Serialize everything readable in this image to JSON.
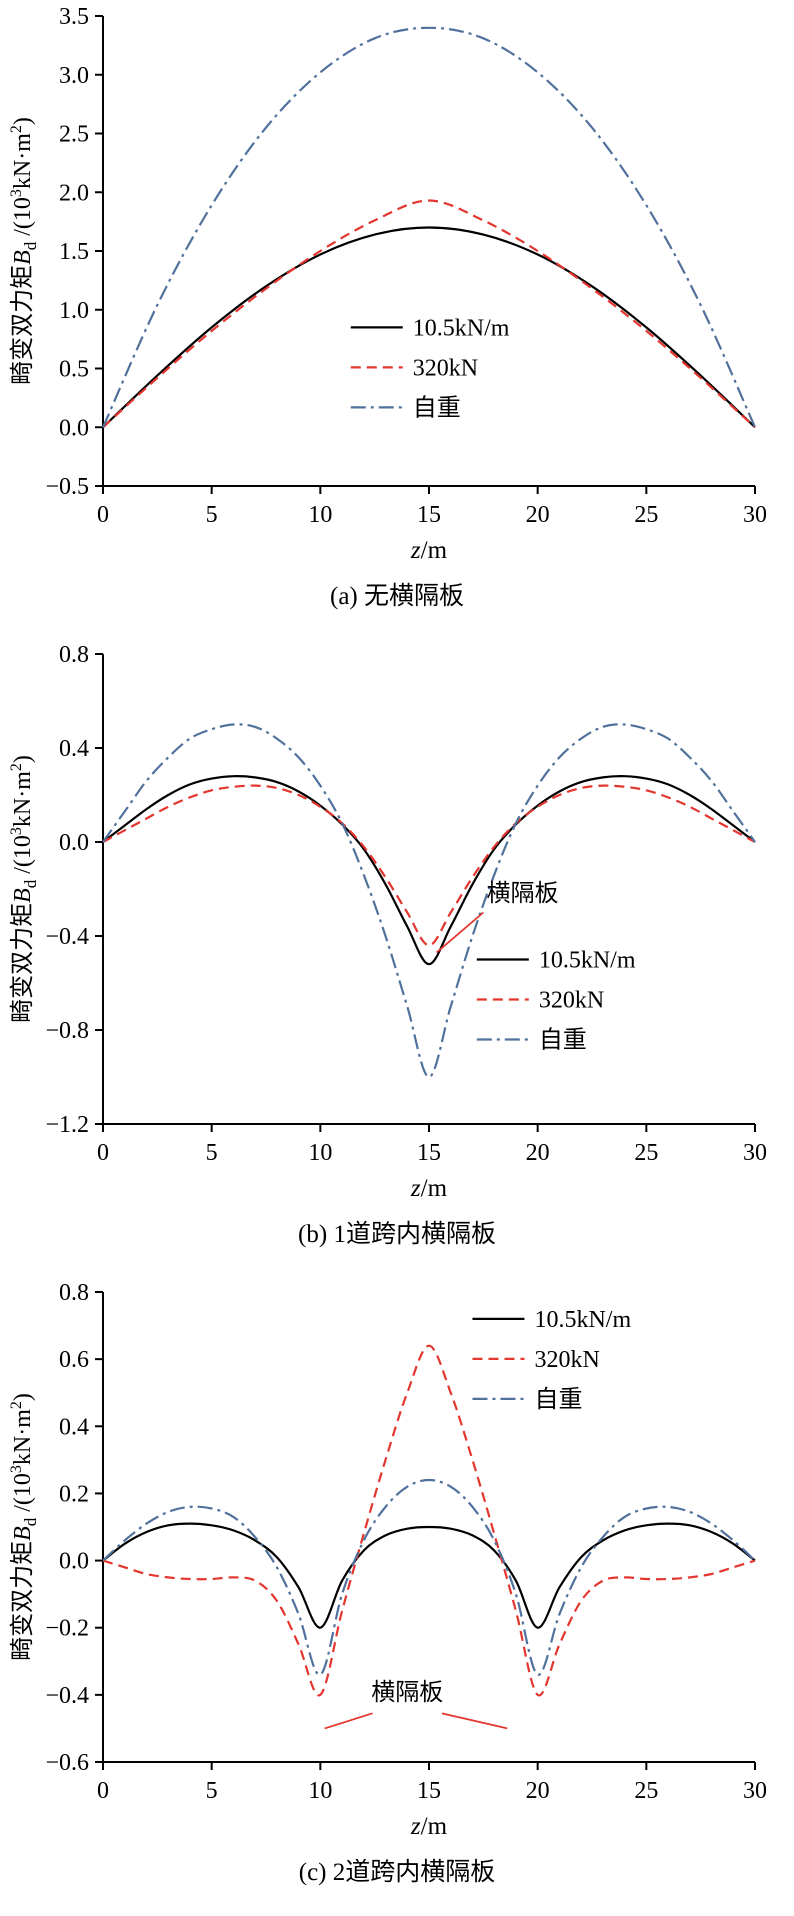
{
  "figure": {
    "background": "#ffffff"
  },
  "styles": {
    "axis_color": "#000000",
    "annotation_line_color": "#e3362f",
    "series_black": "#000000",
    "series_red": "#e3362f",
    "series_blue": "#50719c"
  },
  "xlabel_parts": {
    "symbol": "z",
    "unit": "/m"
  },
  "ylabel_parts": {
    "cn": "畸变双力矩",
    "symbol": "B",
    "symbol_sub": "d",
    "unit_open": " /(10",
    "exp1": "3",
    "unit_mid": "kN·m",
    "exp2": "2",
    "unit_close": ")"
  },
  "chart_data": [
    {
      "type": "line",
      "title": "(a) 无横隔板",
      "xlabel": "z/m",
      "ylabel": "畸变双力矩Bd /(10³kN·m²)",
      "xlim": [
        0,
        30
      ],
      "ylim": [
        -0.5,
        3.5
      ],
      "xticks": [
        0,
        5,
        10,
        15,
        20,
        25,
        30
      ],
      "yticks": [
        -0.5,
        0,
        0.5,
        1,
        1.5,
        2,
        2.5,
        3,
        3.5
      ],
      "x": [
        0,
        2.5,
        5,
        7.5,
        10,
        12.5,
        15,
        17.5,
        20,
        22.5,
        25,
        27.5,
        30
      ],
      "series": [
        {
          "name": "10.5kN/m",
          "color": "#000000",
          "style": "solid",
          "values": [
            0,
            0.44,
            0.85,
            1.2,
            1.47,
            1.64,
            1.7,
            1.64,
            1.47,
            1.2,
            0.85,
            0.44,
            0
          ]
        },
        {
          "name": "320kN",
          "color": "#e3362f",
          "style": "dashed",
          "values": [
            0,
            0.42,
            0.82,
            1.18,
            1.5,
            1.76,
            1.93,
            1.76,
            1.5,
            1.18,
            0.82,
            0.42,
            0
          ]
        },
        {
          "name": "自重",
          "color": "#50719c",
          "style": "dashdot",
          "values": [
            0,
            1.04,
            1.89,
            2.55,
            3.02,
            3.31,
            3.4,
            3.31,
            3.02,
            2.55,
            1.89,
            1.04,
            0
          ]
        }
      ],
      "legend": {
        "x": 11.4,
        "y": 0.85
      },
      "annotations": []
    },
    {
      "type": "line",
      "title": "(b) 1道跨内横隔板",
      "xlabel": "z/m",
      "ylabel": "畸变双力矩Bd /(10³kN·m²)",
      "xlim": [
        0,
        30
      ],
      "ylim": [
        -1.2,
        0.8
      ],
      "xticks": [
        0,
        5,
        10,
        15,
        20,
        25,
        30
      ],
      "yticks": [
        -1.2,
        -0.8,
        -0.4,
        0,
        0.4,
        0.8
      ],
      "x": [
        0,
        1,
        2,
        3,
        4,
        5,
        6,
        7,
        8,
        9,
        10,
        11,
        12,
        13,
        14,
        15,
        16,
        17,
        18,
        19,
        20,
        21,
        22,
        23,
        24,
        25,
        26,
        27,
        28,
        29,
        30
      ],
      "series": [
        {
          "name": "10.5kN/m",
          "color": "#000000",
          "style": "solid",
          "values": [
            0,
            0.07,
            0.14,
            0.2,
            0.245,
            0.27,
            0.28,
            0.275,
            0.255,
            0.215,
            0.155,
            0.075,
            -0.03,
            -0.18,
            -0.36,
            -0.52,
            -0.36,
            -0.18,
            -0.03,
            0.075,
            0.155,
            0.215,
            0.255,
            0.275,
            0.28,
            0.27,
            0.245,
            0.2,
            0.14,
            0.07,
            0
          ]
        },
        {
          "name": "320kN",
          "color": "#e3362f",
          "style": "dashed",
          "values": [
            0,
            0.05,
            0.1,
            0.15,
            0.19,
            0.22,
            0.235,
            0.24,
            0.23,
            0.2,
            0.15,
            0.08,
            -0.02,
            -0.15,
            -0.3,
            -0.44,
            -0.3,
            -0.15,
            -0.02,
            0.08,
            0.15,
            0.2,
            0.23,
            0.24,
            0.235,
            0.22,
            0.19,
            0.15,
            0.1,
            0.05,
            0
          ]
        },
        {
          "name": "自重",
          "color": "#50719c",
          "style": "dashdot",
          "values": [
            0,
            0.13,
            0.26,
            0.36,
            0.44,
            0.48,
            0.5,
            0.49,
            0.44,
            0.36,
            0.24,
            0.08,
            -0.14,
            -0.4,
            -0.7,
            -1.0,
            -0.7,
            -0.4,
            -0.14,
            0.08,
            0.24,
            0.36,
            0.44,
            0.49,
            0.5,
            0.48,
            0.44,
            0.36,
            0.26,
            0.13,
            0
          ]
        }
      ],
      "legend": {
        "x": 17.2,
        "y": -0.5
      },
      "annotations": [
        {
          "text": "横隔板",
          "tx": 19.3,
          "ty": -0.25,
          "lines": [
            [
              17.5,
              -0.3,
              15.35,
              -0.47
            ]
          ]
        }
      ]
    },
    {
      "type": "line",
      "title": "(c) 2道跨内横隔板",
      "xlabel": "z/m",
      "ylabel": "畸变双力矩Bd /(10³kN·m²)",
      "xlim": [
        0,
        30
      ],
      "ylim": [
        -0.6,
        0.8
      ],
      "xticks": [
        0,
        5,
        10,
        15,
        20,
        25,
        30
      ],
      "yticks": [
        -0.6,
        -0.4,
        -0.2,
        0,
        0.2,
        0.4,
        0.6,
        0.8
      ],
      "x": [
        0,
        1,
        2,
        3,
        4,
        5,
        6,
        7,
        8,
        9,
        10,
        11,
        12,
        13,
        14,
        15,
        16,
        17,
        18,
        19,
        20,
        21,
        22,
        23,
        24,
        25,
        26,
        27,
        28,
        29,
        30
      ],
      "series": [
        {
          "name": "10.5kN/m",
          "color": "#000000",
          "style": "solid",
          "values": [
            0,
            0.05,
            0.085,
            0.105,
            0.11,
            0.105,
            0.09,
            0.06,
            0.01,
            -0.08,
            -0.2,
            -0.06,
            0.03,
            0.075,
            0.095,
            0.1,
            0.095,
            0.075,
            0.03,
            -0.06,
            -0.2,
            -0.08,
            0.01,
            0.06,
            0.09,
            0.105,
            0.11,
            0.105,
            0.085,
            0.05,
            0
          ]
        },
        {
          "name": "320kN",
          "color": "#e3362f",
          "style": "dashed",
          "values": [
            0,
            -0.02,
            -0.04,
            -0.05,
            -0.055,
            -0.055,
            -0.05,
            -0.06,
            -0.12,
            -0.25,
            -0.4,
            -0.15,
            0.08,
            0.3,
            0.5,
            0.64,
            0.5,
            0.3,
            0.08,
            -0.15,
            -0.4,
            -0.25,
            -0.12,
            -0.06,
            -0.05,
            -0.055,
            -0.055,
            -0.05,
            -0.04,
            -0.02,
            0
          ]
        },
        {
          "name": "自重",
          "color": "#50719c",
          "style": "dashdot",
          "values": [
            0,
            0.06,
            0.11,
            0.145,
            0.16,
            0.155,
            0.13,
            0.07,
            -0.02,
            -0.16,
            -0.34,
            -0.1,
            0.06,
            0.16,
            0.22,
            0.24,
            0.22,
            0.16,
            0.06,
            -0.1,
            -0.34,
            -0.16,
            -0.02,
            0.07,
            0.13,
            0.155,
            0.16,
            0.145,
            0.11,
            0.06,
            0
          ]
        }
      ],
      "legend": {
        "x": 17.0,
        "y": 0.72
      },
      "annotations": [
        {
          "text": "横隔板",
          "tx": 14.0,
          "ty": -0.415,
          "lines": [
            [
              12.4,
              -0.455,
              10.2,
              -0.5
            ],
            [
              15.6,
              -0.455,
              18.6,
              -0.5
            ]
          ]
        }
      ]
    }
  ]
}
